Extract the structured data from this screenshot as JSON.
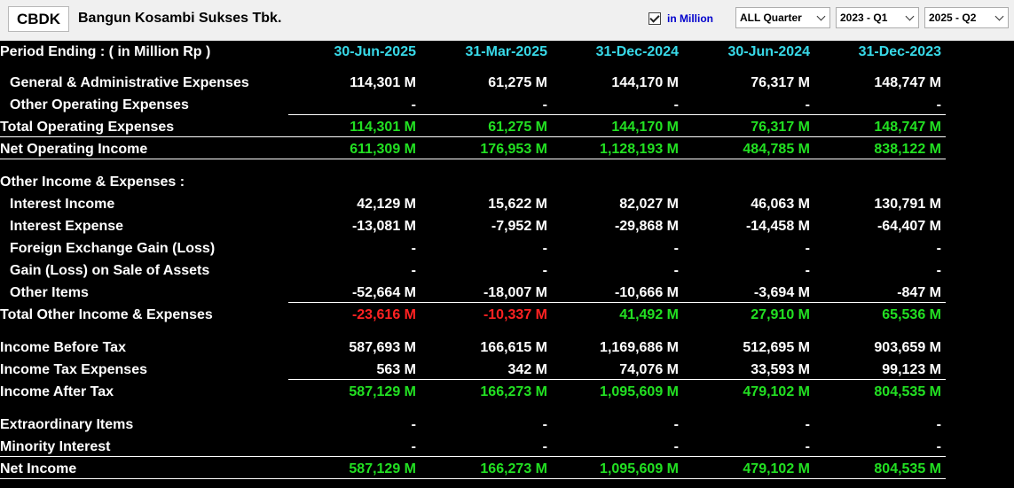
{
  "header": {
    "ticker": "CBDK",
    "company": "Bangun Kosambi Sukses Tbk.",
    "in_million_label": "in Million",
    "in_million_checked": true,
    "period_type": "ALL Quarter",
    "from_period": "2023 - Q1",
    "to_period": "2025 - Q2"
  },
  "table": {
    "period_label": "Period Ending :   ( in Million Rp )",
    "columns": [
      "30-Jun-2025",
      "31-Mar-2025",
      "31-Dec-2024",
      "30-Jun-2024",
      "31-Dec-2023"
    ],
    "rows": [
      {
        "label": "General & Administrative Expenses",
        "values": [
          "114,301 M",
          "61,275 M",
          "144,170 M",
          "76,317 M",
          "148,747 M"
        ]
      },
      {
        "label": "Other Operating Expenses",
        "values": [
          "-",
          "-",
          "-",
          "-",
          "-"
        ]
      },
      {
        "label": "Total Operating Expenses",
        "values": [
          "114,301 M",
          "61,275 M",
          "144,170 M",
          "76,317 M",
          "148,747 M"
        ]
      },
      {
        "label": "Net Operating Income",
        "values": [
          "611,309 M",
          "176,953 M",
          "1,128,193 M",
          "484,785 M",
          "838,122 M"
        ]
      },
      {
        "label": "Other Income & Expenses :",
        "values": []
      },
      {
        "label": "Interest Income",
        "values": [
          "42,129 M",
          "15,622 M",
          "82,027 M",
          "46,063 M",
          "130,791 M"
        ]
      },
      {
        "label": "Interest Expense",
        "values": [
          "-13,081 M",
          "-7,952 M",
          "-29,868 M",
          "-14,458 M",
          "-64,407 M"
        ]
      },
      {
        "label": "Foreign Exchange Gain (Loss)",
        "values": [
          "-",
          "-",
          "-",
          "-",
          "-"
        ]
      },
      {
        "label": "Gain (Loss) on Sale of Assets",
        "values": [
          "-",
          "-",
          "-",
          "-",
          "-"
        ]
      },
      {
        "label": "Other Items",
        "values": [
          "-52,664 M",
          "-18,007 M",
          "-10,666 M",
          "-3,694 M",
          "-847 M"
        ]
      },
      {
        "label": "Total Other Income & Expenses",
        "values": [
          "-23,616 M",
          "-10,337 M",
          "41,492 M",
          "27,910 M",
          "65,536 M"
        ]
      },
      {
        "label": "Income Before Tax",
        "values": [
          "587,693 M",
          "166,615 M",
          "1,169,686 M",
          "512,695 M",
          "903,659 M"
        ]
      },
      {
        "label": "Income Tax Expenses",
        "values": [
          "563 M",
          "342 M",
          "74,076 M",
          "33,593 M",
          "99,123 M"
        ]
      },
      {
        "label": "Income After Tax",
        "values": [
          "587,129 M",
          "166,273 M",
          "1,095,609 M",
          "479,102 M",
          "804,535 M"
        ]
      },
      {
        "label": "Extraordinary Items",
        "values": [
          "-",
          "-",
          "-",
          "-",
          "-"
        ]
      },
      {
        "label": "Minority Interest",
        "values": [
          "-",
          "-",
          "-",
          "-",
          "-"
        ]
      },
      {
        "label": "Net Income",
        "values": [
          "587,129 M",
          "166,273 M",
          "1,095,609 M",
          "479,102 M",
          "804,535 M"
        ]
      }
    ]
  },
  "colors": {
    "header_bg": "#f0f0f0",
    "table_bg": "#000000",
    "column_header": "#38d9e8",
    "positive_total": "#22e022",
    "negative_total": "#ff2222",
    "checkbox_label": "#0000cc"
  },
  "icons": [
    "checkbox-checked-icon",
    "chevron-down-icon"
  ]
}
